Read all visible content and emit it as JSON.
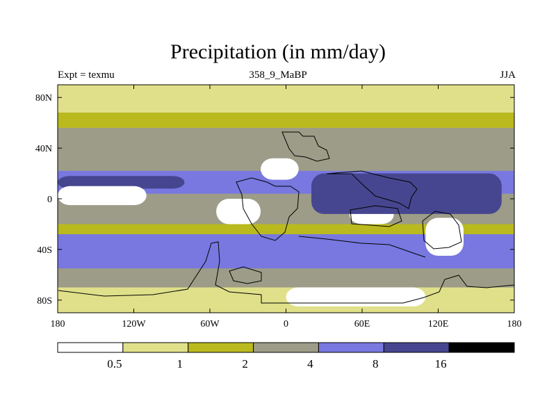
{
  "chart_data": {
    "type": "heatmap",
    "title": "Precipitation (in mm/day)",
    "subtitle_left": "Expt = texmu",
    "subtitle_center": "358_9_MaBP",
    "subtitle_right": "JJA",
    "xlim": [
      -180,
      180
    ],
    "ylim": [
      -90,
      90
    ],
    "x_ticks": [
      {
        "value": -180,
        "label": "180"
      },
      {
        "value": -120,
        "label": "120W"
      },
      {
        "value": -60,
        "label": "60W"
      },
      {
        "value": 0,
        "label": "0"
      },
      {
        "value": 60,
        "label": "60E"
      },
      {
        "value": 120,
        "label": "120E"
      },
      {
        "value": 180,
        "label": "180"
      }
    ],
    "y_ticks": [
      {
        "value": 80,
        "label": "80N"
      },
      {
        "value": 40,
        "label": "40N"
      },
      {
        "value": 0,
        "label": "0"
      },
      {
        "value": -40,
        "label": "40S"
      },
      {
        "value": -80,
        "label": "80S"
      }
    ],
    "contour_levels": [
      "0.5",
      "1",
      "2",
      "4",
      "8",
      "16"
    ],
    "colors": [
      "#ffffff",
      "#e0e08a",
      "#baba1f",
      "#9c9c88",
      "#7878e0",
      "#464690",
      "#000000"
    ],
    "fields": {
      "band_high_north": {
        "lat_range": [
          68,
          90
        ],
        "class": 1
      },
      "band_north_dry": {
        "lat_range": [
          56,
          68
        ],
        "class": 2
      },
      "band_north_mid": {
        "lat_range": [
          20,
          56
        ],
        "class": 3
      },
      "itcz_wet": {
        "lat_range": [
          4,
          22
        ],
        "class": 4
      },
      "itcz_core": {
        "lat_range": [
          8,
          18
        ],
        "lon_range": [
          -180,
          -80
        ],
        "class": 5
      },
      "equatorial_dry": {
        "lat_range": [
          -5,
          10
        ],
        "lon_range": [
          -180,
          -110
        ],
        "class": 0
      },
      "south_subtropics": {
        "lat_range": [
          -55,
          -20
        ],
        "class": 2
      },
      "south_storm_track": {
        "lat_range": [
          -55,
          -28
        ],
        "class": 4
      },
      "south_polar": {
        "lat_range": [
          -90,
          -70
        ],
        "class": 1
      },
      "dry_africa": {
        "lat_range": [
          -20,
          0
        ],
        "lon_range": [
          -55,
          -20
        ],
        "class": 0
      },
      "dry_north_subtropic": {
        "lat_range": [
          15,
          32
        ],
        "lon_range": [
          -20,
          10
        ],
        "class": 0
      },
      "dry_east": {
        "lat_range": [
          -20,
          -5
        ],
        "lon_range": [
          50,
          85
        ],
        "class": 0
      },
      "dry_australia": {
        "lat_range": [
          -45,
          -15
        ],
        "lon_range": [
          110,
          140
        ],
        "class": 0
      },
      "dry_antarctic": {
        "lat_range": [
          -85,
          -70
        ],
        "lon_range": [
          0,
          110
        ],
        "class": 0
      },
      "asia_monsoon": {
        "lat_range": [
          -12,
          20
        ],
        "lon_range": [
          20,
          170
        ],
        "class": 5
      }
    }
  }
}
